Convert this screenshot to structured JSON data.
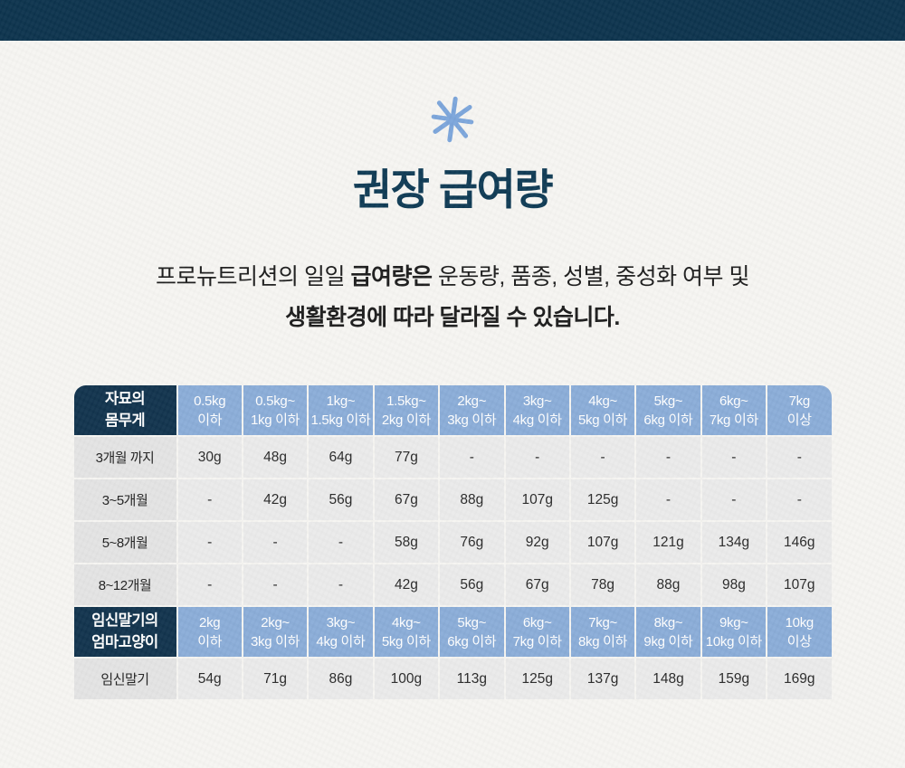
{
  "page": {
    "title": "권장 급여량",
    "subtitle": {
      "line1_prefix": "프로뉴트리션의 일일 ",
      "line1_bold": "급여량은",
      "line1_suffix": " 운동량, 품종, 성별, 중성화 여부 및",
      "line2": "생활환경에 따라 달라질 수 있습니다."
    },
    "decoration_icon": "asterisk-icon"
  },
  "colors": {
    "top_bar_navy": "#0d344e",
    "title_navy": "#0f3b55",
    "header_dark_navy": "#12344e",
    "header_light_blue": "#8badd8",
    "label_cell_gray": "#e4e4e4",
    "data_cell_gray": "#ebebeb",
    "background_paper": "#f6f5f2",
    "asterisk_blue": "#7ca6db"
  },
  "table": {
    "sections": [
      {
        "id": "kitten",
        "corner_label_lines": [
          "자묘의",
          "몸무게"
        ],
        "column_headers": [
          [
            "0.5kg",
            "이하"
          ],
          [
            "0.5kg~",
            "1kg 이하"
          ],
          [
            "1kg~",
            "1.5kg 이하"
          ],
          [
            "1.5kg~",
            "2kg 이하"
          ],
          [
            "2kg~",
            "3kg 이하"
          ],
          [
            "3kg~",
            "4kg 이하"
          ],
          [
            "4kg~",
            "5kg 이하"
          ],
          [
            "5kg~",
            "6kg 이하"
          ],
          [
            "6kg~",
            "7kg 이하"
          ],
          [
            "7kg",
            "이상"
          ]
        ],
        "rounded_top": true,
        "rows": [
          {
            "label": "3개월 까지",
            "values": [
              "30g",
              "48g",
              "64g",
              "77g",
              "-",
              "-",
              "-",
              "-",
              "-",
              "-"
            ]
          },
          {
            "label": "3~5개월",
            "values": [
              "-",
              "42g",
              "56g",
              "67g",
              "88g",
              "107g",
              "125g",
              "-",
              "-",
              "-"
            ]
          },
          {
            "label": "5~8개월",
            "values": [
              "-",
              "-",
              "-",
              "58g",
              "76g",
              "92g",
              "107g",
              "121g",
              "134g",
              "146g"
            ]
          },
          {
            "label": "8~12개월",
            "values": [
              "-",
              "-",
              "-",
              "42g",
              "56g",
              "67g",
              "78g",
              "88g",
              "98g",
              "107g"
            ]
          }
        ]
      },
      {
        "id": "mother",
        "corner_label_lines": [
          "임신말기의",
          "엄마고양이"
        ],
        "column_headers": [
          [
            "2kg",
            "이하"
          ],
          [
            "2kg~",
            "3kg 이하"
          ],
          [
            "3kg~",
            "4kg 이하"
          ],
          [
            "4kg~",
            "5kg 이하"
          ],
          [
            "5kg~",
            "6kg 이하"
          ],
          [
            "6kg~",
            "7kg 이하"
          ],
          [
            "7kg~",
            "8kg 이하"
          ],
          [
            "8kg~",
            "9kg 이하"
          ],
          [
            "9kg~",
            "10kg 이하"
          ],
          [
            "10kg",
            "이상"
          ]
        ],
        "rounded_top": false,
        "rows": [
          {
            "label": "임신말기",
            "values": [
              "54g",
              "71g",
              "86g",
              "100g",
              "113g",
              "125g",
              "137g",
              "148g",
              "159g",
              "169g"
            ]
          }
        ]
      }
    ]
  }
}
